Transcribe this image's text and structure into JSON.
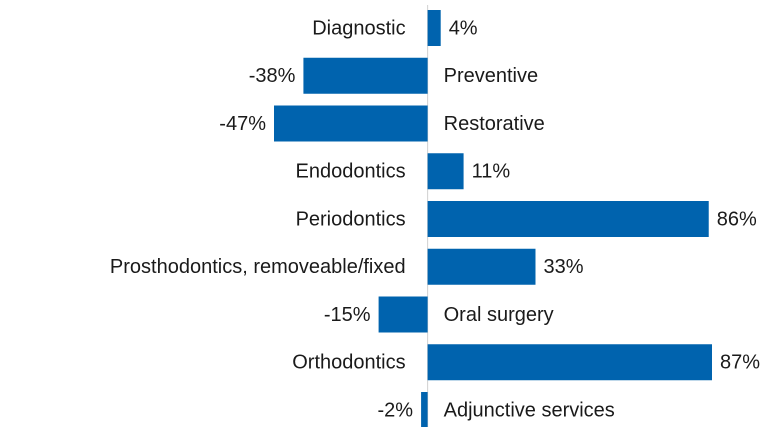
{
  "chart_data": {
    "type": "bar",
    "orientation": "horizontal",
    "color": "#0063ae",
    "categories": [
      "Diagnostic",
      "Preventive",
      "Restorative",
      "Endodontics",
      "Periodontics",
      "Prosthodontics, removeable/fixed",
      "Oral surgery",
      "Orthodontics",
      "Adjunctive services"
    ],
    "values": [
      4,
      -38,
      -47,
      11,
      86,
      33,
      -15,
      87,
      -2
    ],
    "value_labels": [
      "4%",
      "-38%",
      "-47%",
      "11%",
      "86%",
      "33%",
      "-15%",
      "87%",
      "-2%"
    ]
  }
}
